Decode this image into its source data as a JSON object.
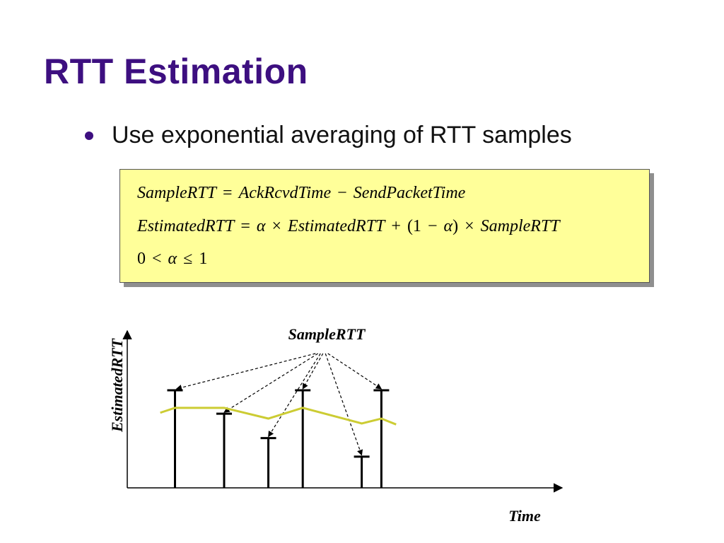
{
  "slide": {
    "title": "RTT Estimation",
    "bullet": "Use exponential averaging of RTT samples"
  },
  "formulas": {
    "line1": "SampleRTT = AckRcvdTime − SendPacketTime",
    "line2": "EstimatedRTT = α × EstimatedRTT + (1 − α) × SampleRTT",
    "line3": "0 < α ≤ 1"
  },
  "diagram": {
    "y_axis_label": "EstimatedRTT",
    "x_axis_label": "Time",
    "samples_label": "SampleRTT",
    "samples": [
      {
        "time": 1.0,
        "rtt": 1.0
      },
      {
        "time": 2.0,
        "rtt": 0.76
      },
      {
        "time": 2.9,
        "rtt": 0.51
      },
      {
        "time": 3.6,
        "rtt": 1.0
      },
      {
        "time": 4.8,
        "rtt": 0.32
      },
      {
        "time": 5.2,
        "rtt": 1.0
      }
    ],
    "estimate": [
      {
        "time": 0.7,
        "rtt": 0.77
      },
      {
        "time": 1.0,
        "rtt": 0.82
      },
      {
        "time": 2.0,
        "rtt": 0.82
      },
      {
        "time": 2.9,
        "rtt": 0.71
      },
      {
        "time": 3.6,
        "rtt": 0.82
      },
      {
        "time": 4.8,
        "rtt": 0.66
      },
      {
        "time": 5.2,
        "rtt": 0.71
      },
      {
        "time": 5.5,
        "rtt": 0.65
      }
    ],
    "colors": {
      "estimate_line": "#cccc33",
      "sample_bars": "#000000"
    }
  }
}
